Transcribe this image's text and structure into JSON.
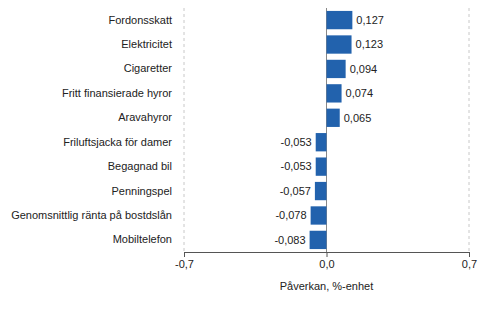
{
  "chart_data": {
    "type": "bar",
    "orientation": "horizontal",
    "categories": [
      "Fordonsskatt",
      "Elektricitet",
      "Cigaretter",
      "Fritt finansierade hyror",
      "Aravahyror",
      "Friluftsjacka för damer",
      "Begagnad bil",
      "Penningspel",
      "Genomsnittlig ränta på bostdslån",
      "Mobiltelefon"
    ],
    "values": [
      0.127,
      0.123,
      0.094,
      0.074,
      0.065,
      -0.053,
      -0.053,
      -0.057,
      -0.078,
      -0.083
    ],
    "value_labels": [
      "0,127",
      "0,123",
      "0,094",
      "0,074",
      "0,065",
      "-0,053",
      "-0,053",
      "-0,057",
      "-0,078",
      "-0,083"
    ],
    "data_labels": true,
    "color": "#2262ad",
    "xlabel": "Påverkan, %-enhet",
    "xlim": [
      -0.7,
      0.7
    ],
    "xticks": [
      {
        "value": -0.7,
        "label": "-0,7"
      },
      {
        "value": 0,
        "label": "0,0"
      },
      {
        "value": 0.7,
        "label": "0,7"
      }
    ],
    "grid": true
  }
}
